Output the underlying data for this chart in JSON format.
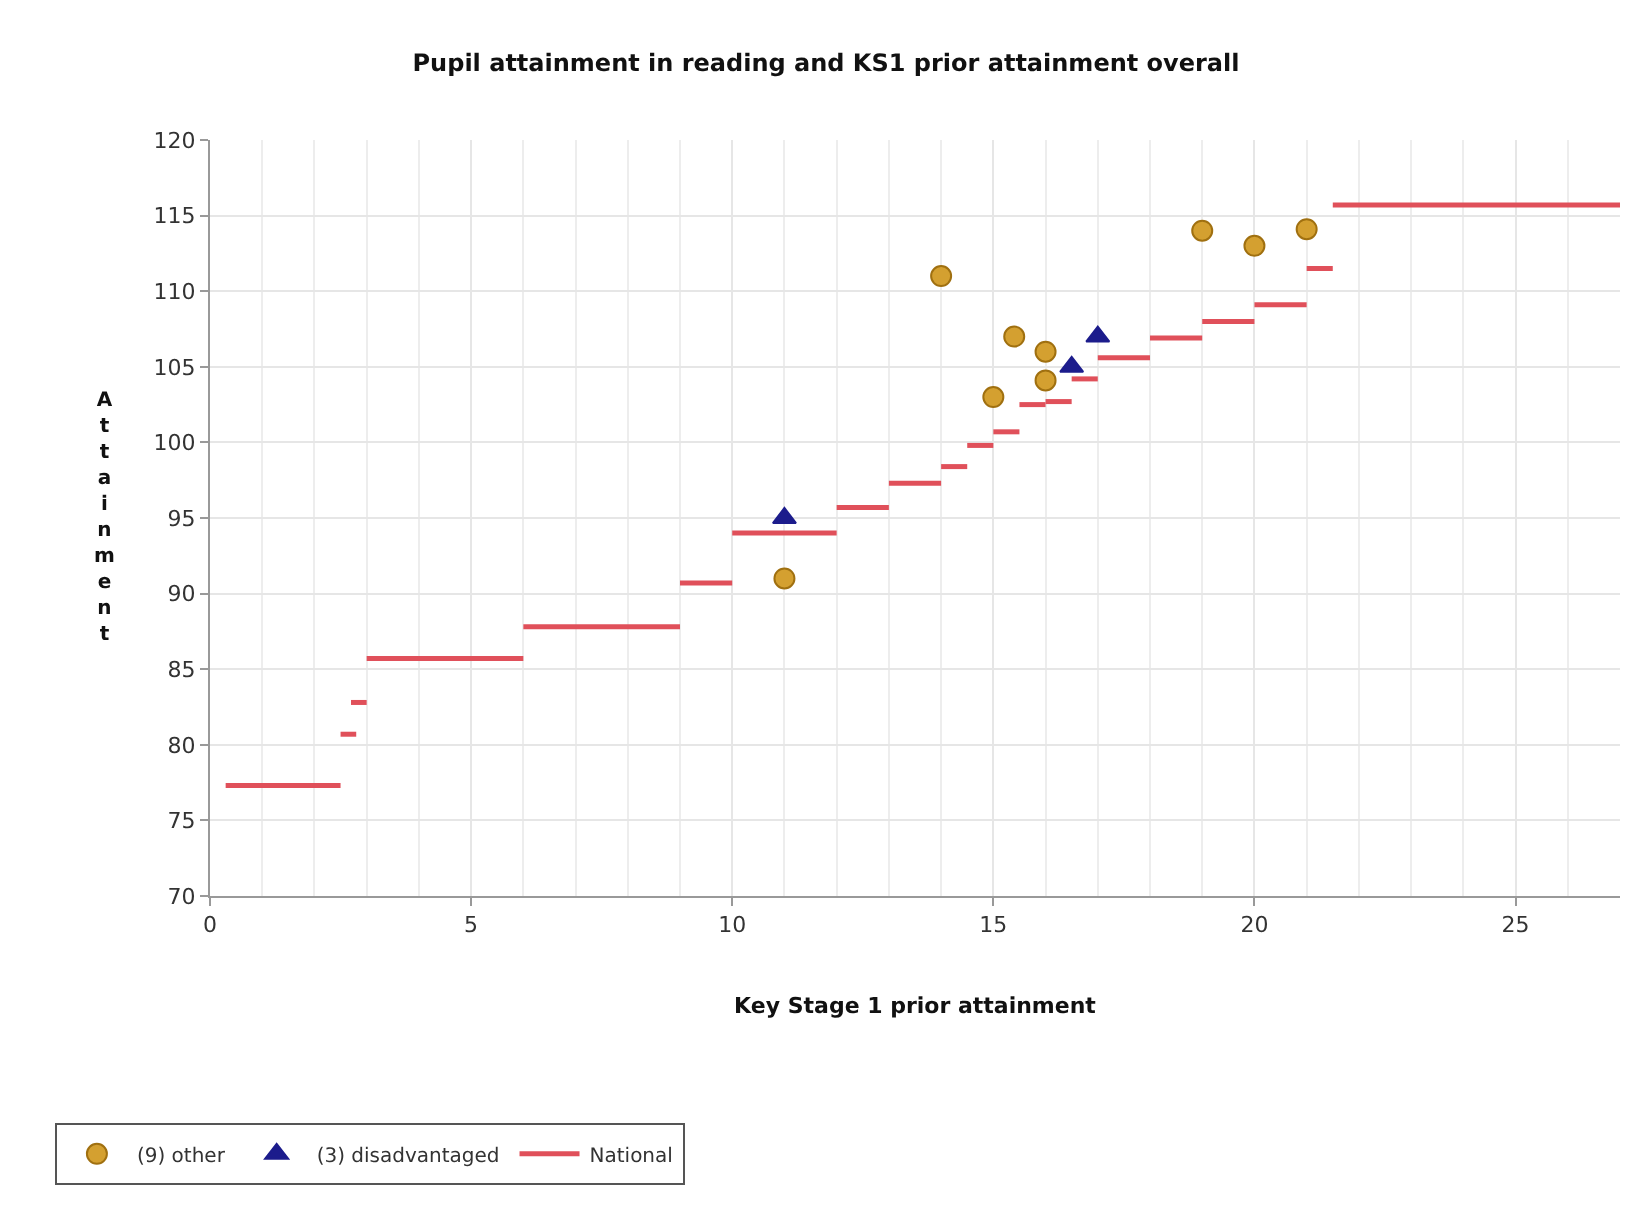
{
  "chart_data": {
    "type": "scatter",
    "title": "Pupil attainment in reading and KS1 prior attainment overall",
    "xlabel": "Key Stage 1 prior attainment",
    "ylabel": "Attainment",
    "xlim": [
      0,
      27
    ],
    "xticks": [
      0,
      5,
      10,
      15,
      20,
      25
    ],
    "ylim": [
      70,
      120
    ],
    "yticks": [
      70,
      75,
      80,
      85,
      90,
      95,
      100,
      105,
      110,
      115,
      120
    ],
    "grid": true,
    "legend": "bottom left",
    "series": [
      {
        "name": "(9) other",
        "marker": "circle",
        "color": "#d4a030",
        "x": [
          11,
          14,
          15.4,
          16,
          16,
          15,
          19,
          20,
          21
        ],
        "values": [
          91,
          111,
          107,
          106,
          104.1,
          103,
          114,
          113,
          114.1
        ]
      },
      {
        "name": "(3) disadvantaged",
        "marker": "triangle",
        "color": "#1c1c8c",
        "x": [
          11,
          16.5,
          17
        ],
        "values": [
          95,
          105,
          107
        ]
      },
      {
        "name": "National",
        "type": "line",
        "marker": "none",
        "line_style": "solid",
        "color": "#e0505a",
        "x": [
          0.3,
          2.5,
          null,
          2.5,
          2.8,
          null,
          2.7,
          3.0,
          null,
          3.0,
          6.0,
          null,
          6.0,
          9.0,
          null,
          9.0,
          10.0,
          null,
          10.0,
          12.0,
          null,
          12.0,
          13.0,
          null,
          13.0,
          14.0,
          null,
          14.0,
          14.5,
          null,
          14.5,
          15.0,
          null,
          15.0,
          15.5,
          null,
          15.5,
          16.0,
          null,
          16.0,
          16.5,
          null,
          16.5,
          17.0,
          null,
          17.0,
          18.0,
          null,
          18.0,
          19.0,
          null,
          19.0,
          20.0,
          null,
          20.0,
          21.0,
          null,
          21.0,
          21.5,
          null,
          21.5,
          27.0
        ],
        "values": [
          77.3,
          77.3,
          null,
          80.7,
          80.7,
          null,
          82.8,
          82.8,
          null,
          85.7,
          85.7,
          null,
          87.8,
          87.8,
          null,
          90.7,
          90.7,
          null,
          94.0,
          94.0,
          null,
          95.7,
          95.7,
          null,
          97.3,
          97.3,
          null,
          98.4,
          98.4,
          null,
          99.8,
          99.8,
          null,
          100.7,
          100.7,
          null,
          102.5,
          102.5,
          null,
          102.7,
          102.7,
          null,
          104.2,
          104.2,
          null,
          105.6,
          105.6,
          null,
          106.9,
          106.9,
          null,
          108.0,
          108.0,
          null,
          109.1,
          109.1,
          null,
          111.5,
          111.5,
          null,
          115.7,
          115.7
        ]
      }
    ]
  }
}
